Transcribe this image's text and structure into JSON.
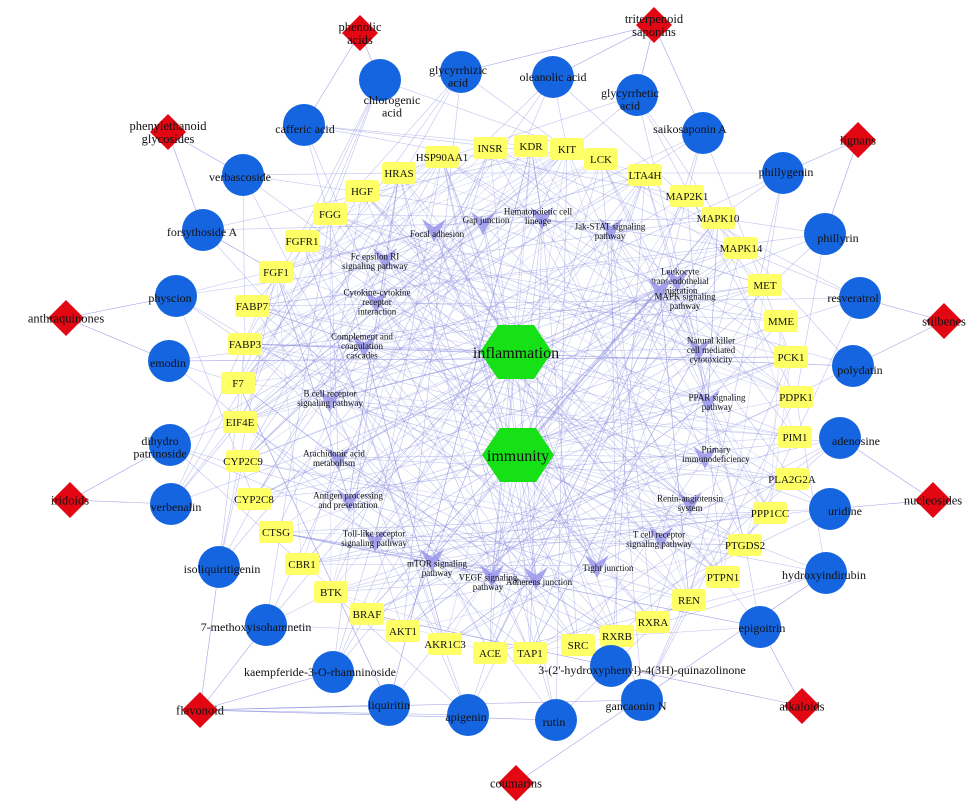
{
  "colors": {
    "edge": "#8c8fe0",
    "ingredient": "#1565e0",
    "category": "#e30613",
    "target": "#ffff66",
    "pathway": "#9a96ea",
    "disease": "#16e016"
  },
  "diseases": [
    "inflammation",
    "immunity"
  ],
  "categories": [
    "phenolic acids",
    "triterpenoid saponins",
    "phenylethanoid glycosides",
    "lignans",
    "anthraquinones",
    "stilbenes",
    "iridoids",
    "nucleosides",
    "flavonoid",
    "alkaloids",
    "coumarins"
  ],
  "ingredients": [
    "chlorogenic acid",
    "glycyrrhizic acid",
    "oleanolic acid",
    "glycyrrhetic acid",
    "cafferic acid",
    "saikosaponin A",
    "verbascoside",
    "phillygenin",
    "forsythoside A",
    "phillyrin",
    "physcion",
    "resveratrol",
    "emodin",
    "polydatin",
    "dihydro patrinoside",
    "adenosine",
    "verbenalin",
    "uridine",
    "isoliquiritigenin",
    "hydroxyindirubin",
    "7-methoxyisohamnetin",
    "epigoitrin",
    "kaempferide-3-O-rhamninoside",
    "3-(2'-hydroxyphenyl)-4(3H)-quinazolinone",
    "liquiritin",
    "apigenin",
    "rutin",
    "gancaonin N"
  ],
  "targets": [
    "HSP90AA1",
    "INSR",
    "KDR",
    "KIT",
    "LCK",
    "LTA4H",
    "HRAS",
    "MAP2K1",
    "HGF",
    "MAPK10",
    "FGG",
    "MAPK14",
    "FGFR1",
    "MET",
    "FGF1",
    "MME",
    "FABP7",
    "PCK1",
    "FABP3",
    "PDPK1",
    "F7",
    "PIM1",
    "EIF4E",
    "PLA2G2A",
    "CYP2C9",
    "PPP1CC",
    "CYP2C8",
    "PTGDS2",
    "CTSG",
    "PTPN1",
    "CBR1",
    "REN",
    "BTK",
    "RXRA",
    "BRAF",
    "RXRB",
    "AKT1",
    "SRC",
    "AKR1C3",
    "TAP1",
    "ACE"
  ],
  "pathways": [
    "Gap junction",
    "Hematopoietic cell lineage",
    "Jak-STAT signaling pathway",
    "Focal adhesion",
    "Fc epsilon RI signaling pathway",
    "Leukocyte transendothelial migration",
    "Cytokine-cytokine receptor interaction",
    "MAPK signaling pathway",
    "Complement and coagulation cascades",
    "Natural killer cell mediated cytotoxicity",
    "B cell receptor signaling pathway",
    "PPAR signaling pathway",
    "Arachidonic acid metabolism",
    "Primary immunodeficiency",
    "Antigen processing and presentation",
    "Renin-angiotensin system",
    "Toll-like receptor signaling pathway",
    "T cell receptor signaling pathway",
    "mTOR signaling pathway",
    "VEGF signaling pathway",
    "Adherens junction",
    "Tight junction"
  ]
}
